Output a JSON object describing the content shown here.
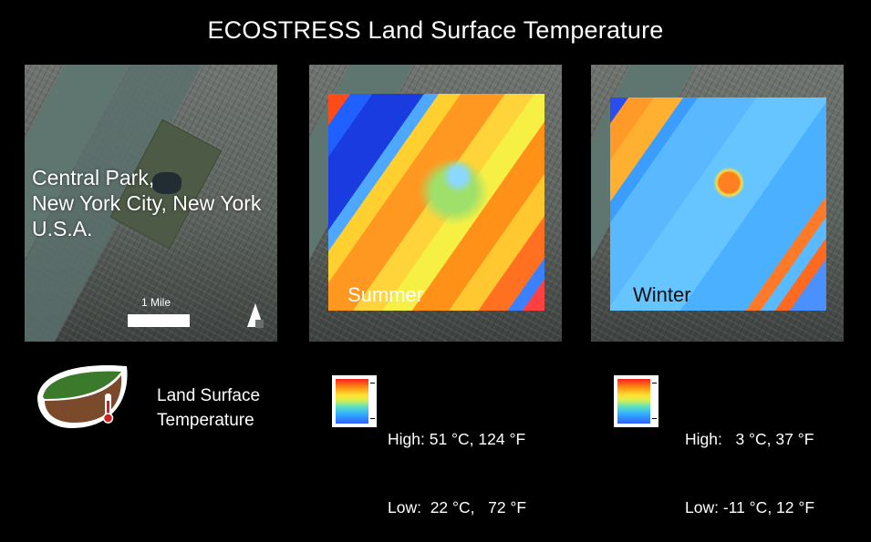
{
  "title": "ECOSTRESS Land Surface Temperature",
  "location": {
    "line1": "Central Park,",
    "line2": "New York City, New York",
    "line3": "U.S.A."
  },
  "scale_label": "1 Mile",
  "panels": {
    "summer_label": "Summer",
    "winter_label": "Winter"
  },
  "legend": {
    "name_line1": "Land Surface",
    "name_line2": "Temperature",
    "summer_high": "High: 51 °C, 124 °F",
    "summer_low": "Low:  22 °C,   72 °F",
    "winter_high": "High:   3 °C, 37 °F",
    "winter_low": "Low: -11 °C, 12 °F"
  },
  "icons": {
    "leaf": "leaf-thermometer-icon",
    "north": "north-arrow-icon"
  },
  "colors": {
    "background": "#000000",
    "hot": "#ff2020",
    "cold": "#3060ff",
    "leaf_green": "#3a7a2a",
    "leaf_brown": "#7a4a2a"
  }
}
